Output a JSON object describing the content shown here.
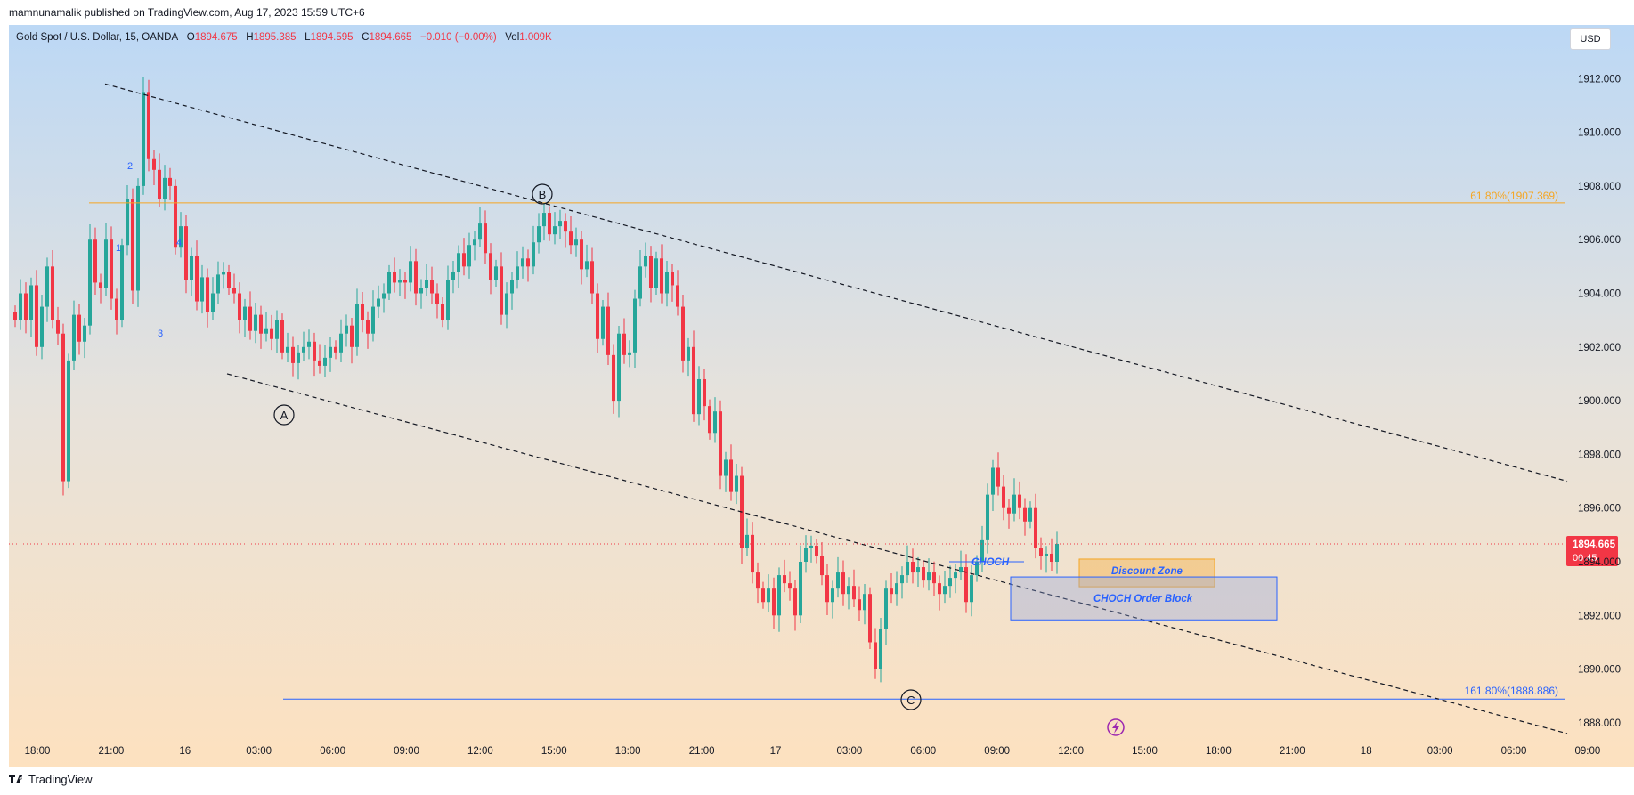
{
  "header": {
    "published_text": "mamnunamalik published on TradingView.com, Aug 17, 2023 15:59 UTC+6"
  },
  "legend": {
    "symbol": "Gold Spot / U.S. Dollar, 15, OANDA",
    "open_label": "O",
    "open": "1894.675",
    "high_label": "H",
    "high": "1895.385",
    "low_label": "L",
    "low": "1894.595",
    "close_label": "C",
    "close": "1894.665",
    "change": "−0.010 (−0.00%)",
    "vol_label": "Vol",
    "vol": "1.009K"
  },
  "currency_button": "USD",
  "footer": {
    "brand": "TradingView"
  },
  "colors": {
    "up": "#26a69a",
    "down": "#f23645",
    "fib_upper": "#f5a623",
    "fib_lower": "#2962ff",
    "bg_top": "#bcd8f5",
    "bg_bottom": "#fde1bf"
  },
  "chart_data": {
    "type": "candlestick",
    "symbol": "XAUUSD",
    "timeframe": "15",
    "ylim": [
      1887.4,
      1914.0
    ],
    "price_ticks": [
      "1888.000",
      "1890.000",
      "1892.000",
      "1894.000",
      "1896.000",
      "1898.000",
      "1900.000",
      "1902.000",
      "1904.000",
      "1906.000",
      "1908.000",
      "1910.000",
      "1912.000"
    ],
    "time_ticks": [
      "18:00",
      "21:00",
      "16",
      "03:00",
      "06:00",
      "09:00",
      "12:00",
      "15:00",
      "18:00",
      "21:00",
      "17",
      "03:00",
      "06:00",
      "09:00",
      "12:00",
      "15:00",
      "18:00",
      "21:00",
      "18",
      "03:00",
      "06:00",
      "09:00"
    ],
    "last_price": {
      "value": "1894.665",
      "countdown": "00:45"
    },
    "series_close": [
      1903.0,
      1904.0,
      1903.0,
      1904.3,
      1902.0,
      1903.5,
      1905.0,
      1903.0,
      1902.5,
      1897.0,
      1901.5,
      1903.2,
      1902.2,
      1902.8,
      1906.0,
      1904.4,
      1904.2,
      1906.0,
      1903.8,
      1903.0,
      1905.8,
      1907.5,
      1904.1,
      1908.0,
      1911.5,
      1909.0,
      1908.6,
      1907.5,
      1908.3,
      1908.0,
      1905.7,
      1906.5,
      1904.5,
      1905.4,
      1903.7,
      1904.6,
      1903.3,
      1904.0,
      1904.7,
      1904.8,
      1904.2,
      1904.0,
      1903.0,
      1903.5,
      1902.6,
      1903.2,
      1902.5,
      1902.7,
      1902.3,
      1903.0,
      1901.8,
      1902.0,
      1901.4,
      1901.8,
      1902.0,
      1902.2,
      1901.5,
      1901.3,
      1901.6,
      1902.0,
      1901.8,
      1902.5,
      1902.8,
      1902.0,
      1903.6,
      1903.0,
      1902.5,
      1903.5,
      1903.8,
      1904.0,
      1904.8,
      1904.4,
      1904.5,
      1904.4,
      1905.2,
      1904.0,
      1904.2,
      1904.5,
      1904.0,
      1903.6,
      1903.0,
      1904.5,
      1904.8,
      1905.5,
      1905.0,
      1905.8,
      1906.0,
      1906.6,
      1905.5,
      1904.5,
      1905.0,
      1903.2,
      1904.0,
      1904.5,
      1905.0,
      1905.3,
      1905.0,
      1905.9,
      1906.5,
      1907.0,
      1906.2,
      1906.5,
      1906.7,
      1906.3,
      1905.8,
      1906.0,
      1904.9,
      1905.2,
      1904.0,
      1902.3,
      1903.5,
      1901.7,
      1900.0,
      1902.5,
      1901.7,
      1901.8,
      1903.8,
      1905.0,
      1905.4,
      1904.2,
      1905.3,
      1904.0,
      1904.8,
      1904.3,
      1903.5,
      1901.5,
      1902.0,
      1899.5,
      1900.8,
      1899.8,
      1898.8,
      1899.6,
      1897.2,
      1897.8,
      1896.6,
      1897.2,
      1894.5,
      1895.0,
      1893.6,
      1893.0,
      1892.5,
      1893.0,
      1892.0,
      1893.5,
      1893.2,
      1893.0,
      1892.0,
      1894.0,
      1894.5,
      1894.6,
      1894.2,
      1893.5,
      1892.5,
      1893.0,
      1893.6,
      1892.8,
      1893.1,
      1892.6,
      1892.2,
      1892.8,
      1891.0,
      1890.0,
      1891.5,
      1893.0,
      1892.8,
      1893.2,
      1893.5,
      1894.0,
      1893.6,
      1893.8,
      1893.3,
      1893.6,
      1893.2,
      1892.8,
      1893.1,
      1893.4,
      1893.6,
      1893.8,
      1892.5,
      1893.5,
      1894.0,
      1894.8,
      1896.5,
      1897.5,
      1896.8,
      1896.0,
      1895.8,
      1896.5,
      1896.0,
      1895.5,
      1896.0,
      1894.5,
      1894.2,
      1894.3,
      1894.0,
      1894.665
    ],
    "annotations": [
      {
        "label": "61.80%(1907.369)",
        "type": "fib_level",
        "price": 1907.369
      },
      {
        "label": "161.80%(1888.886)",
        "type": "fib_level",
        "price": 1888.886
      },
      {
        "label": "A",
        "type": "wave_label",
        "price": 1900.0
      },
      {
        "label": "B",
        "type": "wave_label",
        "price": 1908.0
      },
      {
        "label": "C",
        "type": "wave_label",
        "price": 1889.1
      },
      {
        "label": "1",
        "type": "wave_count"
      },
      {
        "label": "2",
        "type": "wave_count"
      },
      {
        "label": "3",
        "type": "wave_count"
      },
      {
        "label": "4",
        "type": "wave_count"
      },
      {
        "label": "CHOCH",
        "type": "text"
      },
      {
        "label": "Discount Zone",
        "type": "zone",
        "from": 1893.3,
        "to": 1894.2
      },
      {
        "label": "CHOCH Order Block",
        "type": "zone",
        "from": 1892.2,
        "to": 1893.6
      }
    ],
    "trendlines": [
      {
        "name": "upper",
        "from": [
          0,
          1911.8
        ],
        "to": [
          1,
          1897.0
        ]
      },
      {
        "name": "lower",
        "from": [
          0,
          1901.0
        ],
        "to": [
          1,
          1887.6
        ]
      }
    ],
    "grid": false,
    "legend_position": "top-left"
  }
}
